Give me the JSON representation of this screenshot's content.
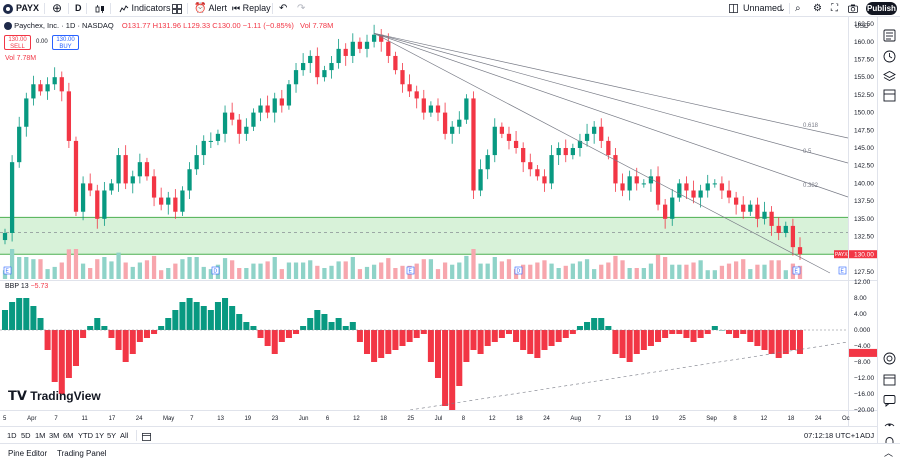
{
  "toolbar": {
    "symbol": "PAYX",
    "interval": "D",
    "indicators_label": "Indicators",
    "alert_label": "Alert",
    "replay_label": "Replay",
    "layout_name": "Unnamed",
    "publish_label": "Publish"
  },
  "legend": {
    "title": "Paychex, Inc. · 1D · NASDAQ",
    "ohlc": "O131.77  H131.96  L129.33  C130.00  −1.11 (−0.85%)",
    "vol_inline": "Vol 7.78M",
    "sell_price": "130.00",
    "sell_label": "SELL",
    "spread": "0.00",
    "buy_price": "130.00",
    "buy_label": "BUY",
    "vol": "Vol  7.78M"
  },
  "indicator_legend": {
    "name": "BBP 13",
    "value": "−5.73"
  },
  "price_axis": {
    "currency": "USD",
    "ticks": [
      "162.50",
      "160.00",
      "157.50",
      "155.00",
      "152.50",
      "150.00",
      "147.50",
      "145.00",
      "142.50",
      "140.00",
      "137.50",
      "135.00",
      "132.50",
      "130.00",
      "127.50"
    ],
    "last_price": "130.00",
    "symbol_tag": "PAYX"
  },
  "indicator_axis": {
    "ticks": [
      "12.00",
      "8.00",
      "4.00",
      "0.000",
      "−4.00",
      "−8.00",
      "−12.00",
      "−16.00",
      "−20.00"
    ]
  },
  "fib_labels": [
    "0.618",
    "0.5",
    "0.382"
  ],
  "time_axis": [
    "5",
    "Apr",
    "7",
    "11",
    "17",
    "24",
    "May",
    "7",
    "13",
    "19",
    "23",
    "Jun",
    "6",
    "12",
    "18",
    "25",
    "Jul",
    "8",
    "12",
    "18",
    "24",
    "Aug",
    "7",
    "13",
    "19",
    "25",
    "Sep",
    "8",
    "12",
    "18",
    "24",
    "Oc"
  ],
  "bottombar": {
    "ranges": [
      "1D",
      "5D",
      "1M",
      "3M",
      "6M",
      "YTD",
      "1Y",
      "5Y",
      "All"
    ],
    "clock": "07:12:18 UTC+1",
    "adj": "ADJ"
  },
  "panelbar": {
    "pine_editor": "Pine Editor",
    "trading_panel": "Trading Panel"
  },
  "branding": "TradingView",
  "colors": {
    "up": "#089981",
    "down": "#f23645",
    "zone": "#c8ecc9",
    "zone_line": "#4caf50"
  },
  "chart_data": [
    {
      "type": "candlestick",
      "title": "Paychex, Inc. · 1D · NASDAQ",
      "ylim": [
        126.5,
        163.5
      ],
      "support_zone": [
        130.0,
        135.2
      ],
      "closes": [
        133,
        143,
        148,
        152,
        154,
        153,
        154,
        155,
        153,
        146,
        136,
        140,
        139,
        135,
        139,
        140,
        144,
        140,
        141,
        143,
        141,
        138,
        137,
        138,
        136,
        139,
        142,
        144,
        146,
        146,
        147,
        150,
        149,
        147,
        148,
        150,
        151,
        150,
        152,
        151,
        154,
        156,
        157,
        158,
        155,
        156,
        157,
        159,
        158,
        160,
        159,
        160,
        161,
        160,
        158,
        156,
        154,
        153,
        152,
        150,
        151,
        150,
        147,
        148,
        149,
        152,
        139,
        142,
        144,
        148,
        147,
        146,
        145,
        143,
        142,
        141,
        140,
        144,
        145,
        144,
        145,
        146,
        147,
        148,
        146,
        144,
        140,
        139,
        141,
        140,
        140,
        141,
        137,
        135,
        138,
        140,
        139,
        138,
        139,
        140,
        140,
        139,
        138,
        137,
        136,
        137,
        135,
        136,
        134,
        133,
        134,
        131,
        130
      ],
      "volume_unit": "shares",
      "last_volume": "7.78M"
    },
    {
      "type": "bar",
      "title": "BBP 13",
      "ylim": [
        -20,
        12
      ],
      "values": [
        5,
        7,
        8,
        8,
        6,
        3,
        -5,
        -13,
        -16,
        -12,
        -9,
        -2,
        1,
        3,
        1,
        -2,
        -5,
        -8,
        -6,
        -3,
        -2,
        -1,
        1,
        3,
        5,
        7,
        8,
        7,
        6,
        5,
        7,
        8,
        6,
        4,
        2,
        1,
        -2,
        -4,
        -6,
        -3,
        -2,
        -1,
        1,
        3,
        5,
        4,
        2,
        3,
        1,
        2,
        -3,
        -6,
        -8,
        -7,
        -6,
        -5,
        -4,
        -3,
        -2,
        -1,
        -8,
        -12,
        -19,
        -20,
        -14,
        -8,
        -5,
        -6,
        -4,
        -3,
        -2,
        -1,
        -3,
        -5,
        -6,
        -7,
        -5,
        -4,
        -3,
        -2,
        -1,
        1,
        2,
        3,
        3,
        1,
        -6,
        -7,
        -8,
        -6,
        -5,
        -4,
        -3,
        -2,
        -1,
        -1,
        -2,
        -3,
        -2,
        -1,
        1,
        0,
        -1,
        -2,
        -1,
        -3,
        -4,
        -5,
        -6,
        -7,
        -6,
        -5,
        -6
      ]
    }
  ]
}
